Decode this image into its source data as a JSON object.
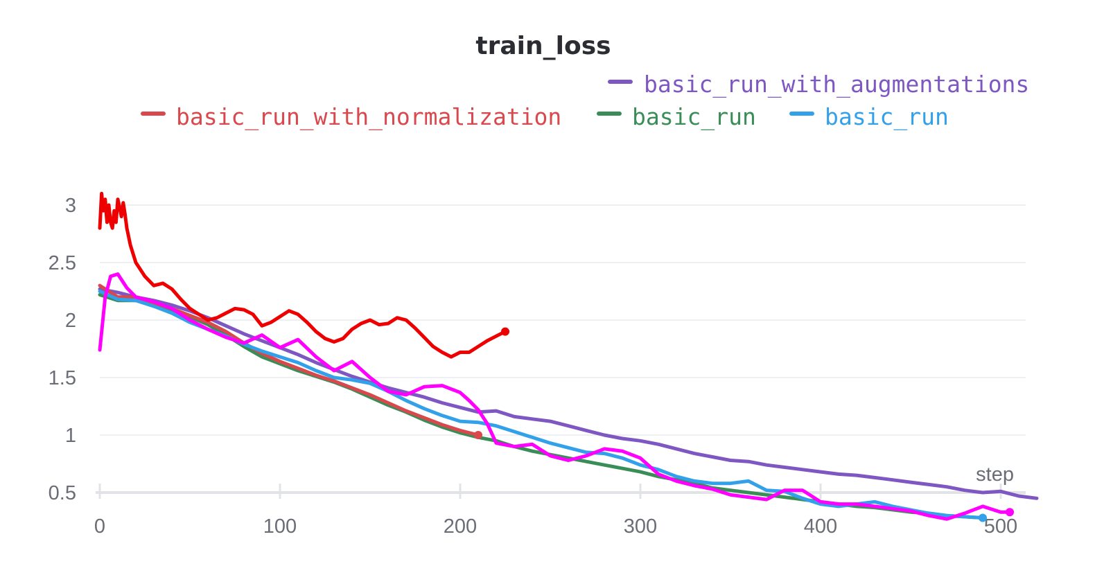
{
  "chart_data": {
    "type": "line",
    "title": "train_loss",
    "xlabel": "step",
    "ylabel": "",
    "xlim": [
      0,
      525
    ],
    "ylim": [
      0,
      3.15
    ],
    "x_ticks": [
      "0",
      "100",
      "200",
      "300",
      "400",
      "500"
    ],
    "y_ticks": [
      "0.5",
      "1",
      "1.5",
      "2",
      "2.5",
      "3"
    ],
    "grid": true,
    "legend_position": "top",
    "legend": [
      {
        "label": "basic_run_with_augmentations",
        "color": "#7e57c2"
      },
      {
        "label": "basic_run_with_normalization",
        "color": "#d9484c"
      },
      {
        "label": "basic_run",
        "color": "#3a8d57"
      },
      {
        "label": "basic_run",
        "color": "#33a1ea"
      }
    ],
    "series": [
      {
        "name": "basic_run_with_augmentations",
        "color": "#7e57c2",
        "x": [
          0,
          10,
          20,
          30,
          40,
          50,
          60,
          70,
          80,
          90,
          100,
          110,
          120,
          130,
          140,
          150,
          160,
          170,
          180,
          190,
          200,
          210,
          220,
          230,
          240,
          250,
          260,
          270,
          280,
          290,
          300,
          310,
          320,
          330,
          340,
          350,
          360,
          370,
          380,
          390,
          400,
          410,
          420,
          430,
          440,
          450,
          460,
          470,
          480,
          490,
          500,
          510,
          520
        ],
        "y": [
          2.27,
          2.24,
          2.2,
          2.17,
          2.13,
          2.08,
          2.02,
          1.95,
          1.88,
          1.82,
          1.76,
          1.7,
          1.63,
          1.57,
          1.51,
          1.46,
          1.41,
          1.37,
          1.33,
          1.28,
          1.24,
          1.2,
          1.21,
          1.16,
          1.14,
          1.12,
          1.08,
          1.04,
          1.0,
          0.97,
          0.95,
          0.92,
          0.88,
          0.84,
          0.81,
          0.78,
          0.77,
          0.74,
          0.72,
          0.7,
          0.68,
          0.66,
          0.65,
          0.63,
          0.61,
          0.59,
          0.57,
          0.55,
          0.52,
          0.5,
          0.51,
          0.47,
          0.45
        ]
      },
      {
        "name": "basic_run",
        "color": "#3a8d57",
        "x": [
          0,
          10,
          20,
          30,
          40,
          50,
          60,
          70,
          80,
          90,
          100,
          110,
          120,
          130,
          140,
          150,
          160,
          170,
          180,
          190,
          200,
          210,
          220,
          230,
          240,
          250,
          260,
          270,
          280,
          290,
          300,
          310,
          320,
          330,
          340,
          350,
          360,
          370,
          380,
          390,
          400,
          410,
          420,
          430,
          440,
          450,
          460,
          470,
          480,
          490
        ],
        "y": [
          2.22,
          2.17,
          2.17,
          2.14,
          2.08,
          2.03,
          1.96,
          1.87,
          1.77,
          1.68,
          1.62,
          1.56,
          1.51,
          1.46,
          1.4,
          1.33,
          1.26,
          1.2,
          1.13,
          1.07,
          1.02,
          0.98,
          0.95,
          0.9,
          0.86,
          0.83,
          0.8,
          0.77,
          0.74,
          0.71,
          0.68,
          0.64,
          0.61,
          0.58,
          0.54,
          0.52,
          0.5,
          0.48,
          0.46,
          0.44,
          0.42,
          0.4,
          0.38,
          0.37,
          0.35,
          0.33,
          0.32,
          0.3,
          0.29,
          0.28
        ]
      },
      {
        "name": "basic_run_with_normalization",
        "color": "#d9484c",
        "x": [
          0,
          10,
          20,
          30,
          40,
          50,
          60,
          70,
          80,
          90,
          100,
          110,
          120,
          130,
          140,
          150,
          160,
          170,
          180,
          190,
          200,
          210
        ],
        "y": [
          2.3,
          2.2,
          2.2,
          2.15,
          2.1,
          2.04,
          1.98,
          1.9,
          1.8,
          1.71,
          1.64,
          1.58,
          1.52,
          1.47,
          1.41,
          1.35,
          1.28,
          1.21,
          1.15,
          1.09,
          1.04,
          1.0
        ]
      },
      {
        "name": "basic_run",
        "color": "#33a1ea",
        "x": [
          0,
          10,
          20,
          30,
          40,
          50,
          60,
          70,
          80,
          90,
          100,
          110,
          120,
          130,
          140,
          150,
          160,
          170,
          180,
          190,
          200,
          210,
          220,
          230,
          240,
          250,
          260,
          270,
          280,
          290,
          300,
          310,
          320,
          330,
          340,
          350,
          360,
          370,
          380,
          390,
          400,
          410,
          420,
          430,
          440,
          450,
          460,
          470,
          480,
          490
        ],
        "y": [
          2.25,
          2.18,
          2.17,
          2.12,
          2.06,
          1.98,
          1.92,
          1.86,
          1.79,
          1.73,
          1.68,
          1.63,
          1.56,
          1.5,
          1.48,
          1.45,
          1.38,
          1.3,
          1.23,
          1.17,
          1.12,
          1.11,
          1.08,
          1.03,
          0.98,
          0.93,
          0.89,
          0.85,
          0.84,
          0.8,
          0.74,
          0.7,
          0.64,
          0.6,
          0.58,
          0.58,
          0.6,
          0.52,
          0.51,
          0.45,
          0.4,
          0.38,
          0.4,
          0.42,
          0.38,
          0.35,
          0.32,
          0.3,
          0.29,
          0.28
        ]
      },
      {
        "name": "",
        "color": "#ff00ff",
        "x": [
          0,
          3,
          6,
          10,
          15,
          20,
          30,
          40,
          50,
          60,
          70,
          80,
          90,
          100,
          110,
          120,
          130,
          140,
          150,
          160,
          170,
          180,
          190,
          200,
          205,
          210,
          215,
          220,
          230,
          240,
          250,
          260,
          270,
          280,
          290,
          300,
          310,
          320,
          330,
          340,
          350,
          360,
          370,
          380,
          390,
          400,
          410,
          420,
          430,
          440,
          450,
          460,
          470,
          480,
          490,
          500,
          505
        ],
        "y": [
          1.74,
          2.2,
          2.38,
          2.4,
          2.28,
          2.2,
          2.16,
          2.1,
          2.0,
          1.92,
          1.85,
          1.8,
          1.87,
          1.76,
          1.83,
          1.68,
          1.56,
          1.64,
          1.5,
          1.38,
          1.35,
          1.42,
          1.43,
          1.37,
          1.3,
          1.22,
          1.1,
          0.93,
          0.9,
          0.92,
          0.82,
          0.78,
          0.82,
          0.88,
          0.86,
          0.8,
          0.66,
          0.6,
          0.56,
          0.53,
          0.48,
          0.46,
          0.44,
          0.52,
          0.52,
          0.42,
          0.4,
          0.4,
          0.38,
          0.36,
          0.34,
          0.3,
          0.27,
          0.32,
          0.38,
          0.33,
          0.33
        ]
      },
      {
        "name": "",
        "color": "#ee0000",
        "x": [
          0,
          1,
          2,
          3,
          4,
          5,
          6,
          7,
          8,
          9,
          10,
          11,
          12,
          13,
          14,
          15,
          17,
          20,
          25,
          30,
          35,
          40,
          45,
          50,
          55,
          60,
          65,
          70,
          75,
          80,
          85,
          90,
          95,
          100,
          105,
          110,
          115,
          120,
          125,
          130,
          135,
          140,
          145,
          150,
          155,
          160,
          165,
          170,
          175,
          180,
          185,
          190,
          195,
          200,
          205,
          210,
          215,
          220,
          225
        ],
        "y": [
          2.8,
          3.1,
          2.95,
          3.05,
          2.85,
          3.0,
          2.85,
          2.8,
          2.95,
          2.85,
          3.05,
          2.98,
          2.9,
          3.02,
          2.92,
          2.8,
          2.65,
          2.5,
          2.38,
          2.3,
          2.32,
          2.27,
          2.18,
          2.1,
          2.05,
          2.0,
          2.02,
          2.06,
          2.1,
          2.09,
          2.05,
          1.95,
          1.98,
          2.03,
          2.08,
          2.05,
          1.98,
          1.9,
          1.84,
          1.81,
          1.84,
          1.92,
          1.97,
          2.0,
          1.96,
          1.97,
          2.02,
          2.0,
          1.93,
          1.85,
          1.77,
          1.72,
          1.68,
          1.72,
          1.72,
          1.77,
          1.82,
          1.86,
          1.9
        ]
      }
    ]
  }
}
